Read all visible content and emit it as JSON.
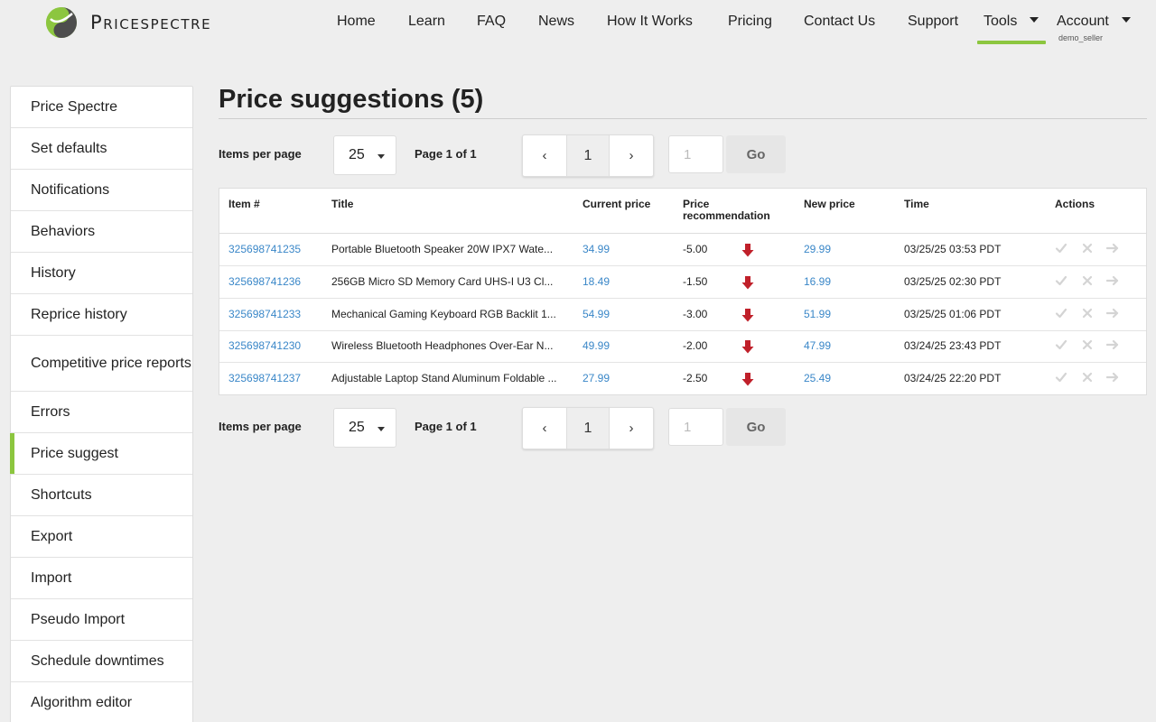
{
  "brand": {
    "name": "Pricespectre"
  },
  "nav": {
    "links": [
      "Home",
      "Learn",
      "FAQ",
      "News",
      "How It Works",
      "Pricing",
      "Contact Us",
      "Support"
    ],
    "tools": "Tools",
    "account": "Account",
    "account_user": "demo_seller"
  },
  "sidebar": {
    "items": [
      "Price Spectre",
      "Set defaults",
      "Notifications",
      "Behaviors",
      "History",
      "Reprice history",
      "Competitive price reports",
      "Errors",
      "Price suggest",
      "Shortcuts",
      "Export",
      "Import",
      "Pseudo Import",
      "Schedule downtimes",
      "Algorithm editor"
    ],
    "active": "Price suggest"
  },
  "main": {
    "title": "Price suggestions (5)",
    "pager": {
      "items_per_page_label": "Items per page",
      "items_per_page": "25",
      "page_info": "Page 1 of 1",
      "prev": "‹",
      "current": "1",
      "next": "›",
      "goto_placeholder": "1",
      "go": "Go"
    },
    "table": {
      "headers": [
        "Item #",
        "Title",
        "Current price",
        "Price recommendation",
        "New price",
        "Time",
        "Actions"
      ],
      "rows": [
        {
          "item": "325698741235",
          "title": "Portable Bluetooth Speaker 20W IPX7 Wate...",
          "current": "34.99",
          "rec": "-5.00",
          "new": "29.99",
          "time": "03/25/25 03:53 PDT"
        },
        {
          "item": "325698741236",
          "title": "256GB Micro SD Memory Card UHS-I U3 Cl...",
          "current": "18.49",
          "rec": "-1.50",
          "new": "16.99",
          "time": "03/25/25 02:30 PDT"
        },
        {
          "item": "325698741233",
          "title": "Mechanical Gaming Keyboard RGB Backlit 1...",
          "current": "54.99",
          "rec": "-3.00",
          "new": "51.99",
          "time": "03/25/25 01:06 PDT"
        },
        {
          "item": "325698741230",
          "title": "Wireless Bluetooth Headphones Over-Ear N...",
          "current": "49.99",
          "rec": "-2.00",
          "new": "47.99",
          "time": "03/24/25 23:43 PDT"
        },
        {
          "item": "325698741237",
          "title": "Adjustable Laptop Stand Aluminum Foldable ...",
          "current": "27.99",
          "rec": "-2.50",
          "new": "25.49",
          "time": "03/24/25 22:20 PDT"
        }
      ]
    }
  },
  "colors": {
    "accent": "#8cc63f",
    "link": "#3a87c8",
    "arrow_down": "#c0202a"
  }
}
